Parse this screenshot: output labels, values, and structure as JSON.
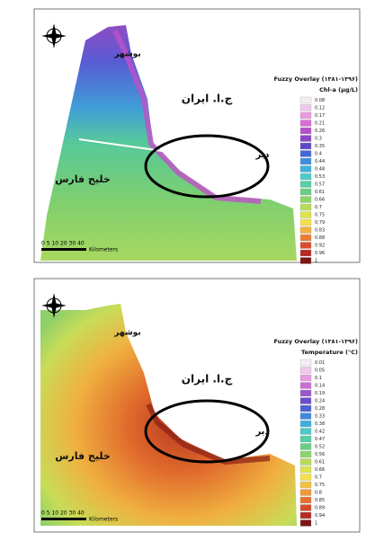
{
  "panels": [
    {
      "labels": {
        "city": "بوشهر",
        "country": "ج.ا. ایران",
        "gulf": "خلیج فارس",
        "port": "دیر"
      },
      "legend": {
        "title": "Fuzzy Overlay (۱۳۸۱-۱۳۹۶)",
        "subtitle": "Chl-a (µg/L)",
        "items": [
          {
            "label": "0.08",
            "color": "#f4eef4"
          },
          {
            "label": "0.12",
            "color": "#f0c8ec"
          },
          {
            "label": "0.17",
            "color": "#e89be0"
          },
          {
            "label": "0.21",
            "color": "#d86ed4"
          },
          {
            "label": "0.26",
            "color": "#b64fc8"
          },
          {
            "label": "0.3",
            "color": "#8a46c6"
          },
          {
            "label": "0.35",
            "color": "#5d48cc"
          },
          {
            "label": "0.4",
            "color": "#4466d8"
          },
          {
            "label": "0.44",
            "color": "#3b8ede"
          },
          {
            "label": "0.48",
            "color": "#3fb2dc"
          },
          {
            "label": "0.53",
            "color": "#4acbc8"
          },
          {
            "label": "0.57",
            "color": "#55cfa6"
          },
          {
            "label": "0.61",
            "color": "#6acd86"
          },
          {
            "label": "0.66",
            "color": "#8dd46a"
          },
          {
            "label": "0.7",
            "color": "#b6dc58"
          },
          {
            "label": "0.75",
            "color": "#dde44c"
          },
          {
            "label": "0.79",
            "color": "#f4e04a"
          },
          {
            "label": "0.83",
            "color": "#f4b03e"
          },
          {
            "label": "0.88",
            "color": "#ee7b34"
          },
          {
            "label": "0.92",
            "color": "#dc4a2c"
          },
          {
            "label": "0.96",
            "color": "#b82a24"
          },
          {
            "label": "1",
            "color": "#7e1414"
          }
        ]
      },
      "scale": {
        "numbers": "0 5 10 20 30 40",
        "unit": "Kilometers"
      }
    },
    {
      "labels": {
        "city": "بوشهر",
        "country": "ج.ا. ایران",
        "gulf": "خلیج فارس",
        "port": "دیر"
      },
      "legend": {
        "title": "Fuzzy Overlay (۱۳۸۱-۱۳۹۶)",
        "subtitle": "Temperature (°C)",
        "items": [
          {
            "label": "0.01",
            "color": "#f4eef4"
          },
          {
            "label": "0.05",
            "color": "#f0c8ec"
          },
          {
            "label": "0.1",
            "color": "#e89be0"
          },
          {
            "label": "0.14",
            "color": "#c870d4"
          },
          {
            "label": "0.19",
            "color": "#9a56cc"
          },
          {
            "label": "0.24",
            "color": "#6a4ccc"
          },
          {
            "label": "0.28",
            "color": "#4a62d6"
          },
          {
            "label": "0.33",
            "color": "#3f88dc"
          },
          {
            "label": "0.38",
            "color": "#3fb0dc"
          },
          {
            "label": "0.42",
            "color": "#4acbc8"
          },
          {
            "label": "0.47",
            "color": "#55cfa6"
          },
          {
            "label": "0.52",
            "color": "#6acd86"
          },
          {
            "label": "0.56",
            "color": "#8dd46a"
          },
          {
            "label": "0.61",
            "color": "#b6dc58"
          },
          {
            "label": "0.66",
            "color": "#dde44c"
          },
          {
            "label": "0.7",
            "color": "#f4e04a"
          },
          {
            "label": "0.75",
            "color": "#f4c040"
          },
          {
            "label": "0.8",
            "color": "#f09a38"
          },
          {
            "label": "0.85",
            "color": "#e87030"
          },
          {
            "label": "0.89",
            "color": "#d84a2a"
          },
          {
            "label": "0.94",
            "color": "#b82a24"
          },
          {
            "label": "1",
            "color": "#7e1414"
          }
        ]
      },
      "scale": {
        "numbers": "0 5 10 20 30 40",
        "unit": "Kilometers"
      }
    }
  ]
}
